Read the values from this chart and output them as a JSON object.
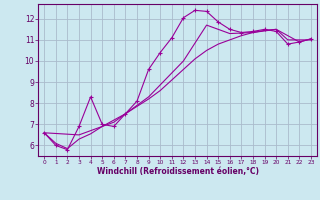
{
  "bg_color": "#cce8f0",
  "line_color": "#990099",
  "grid_color": "#aabbcc",
  "xlabel": "Windchill (Refroidissement éolien,°C)",
  "xlabel_color": "#660066",
  "tick_color": "#660066",
  "spine_color": "#660066",
  "xlim": [
    -0.5,
    23.5
  ],
  "ylim": [
    5.5,
    12.7
  ],
  "yticks": [
    6,
    7,
    8,
    9,
    10,
    11,
    12
  ],
  "xticks": [
    0,
    1,
    2,
    3,
    4,
    5,
    6,
    7,
    8,
    9,
    10,
    11,
    12,
    13,
    14,
    15,
    16,
    17,
    18,
    19,
    20,
    21,
    22,
    23
  ],
  "line1_x": [
    0,
    1,
    2,
    3,
    4,
    5,
    6,
    7,
    8,
    9,
    10,
    11,
    12,
    13,
    14,
    15,
    16,
    17,
    18,
    19,
    20,
    21,
    22,
    23
  ],
  "line1_y": [
    6.6,
    6.0,
    5.8,
    6.9,
    8.3,
    7.0,
    6.9,
    7.5,
    8.1,
    9.6,
    10.4,
    11.1,
    12.05,
    12.4,
    12.35,
    11.85,
    11.5,
    11.35,
    11.4,
    11.5,
    11.4,
    10.8,
    10.9,
    11.05
  ],
  "line2_x": [
    0,
    1,
    2,
    3,
    4,
    5,
    6,
    7,
    8,
    9,
    10,
    11,
    12,
    13,
    14,
    15,
    16,
    17,
    18,
    19,
    20,
    21,
    22,
    23
  ],
  "line2_y": [
    6.6,
    6.1,
    5.85,
    6.3,
    6.55,
    6.9,
    7.2,
    7.5,
    7.85,
    8.2,
    8.6,
    9.1,
    9.6,
    10.1,
    10.5,
    10.8,
    11.0,
    11.2,
    11.35,
    11.45,
    11.5,
    11.0,
    11.0,
    11.0
  ],
  "line3_x": [
    0,
    3,
    6,
    9,
    12,
    14,
    16,
    18,
    20,
    22,
    23
  ],
  "line3_y": [
    6.6,
    6.5,
    7.1,
    8.3,
    10.0,
    11.7,
    11.3,
    11.35,
    11.5,
    10.9,
    11.05
  ]
}
